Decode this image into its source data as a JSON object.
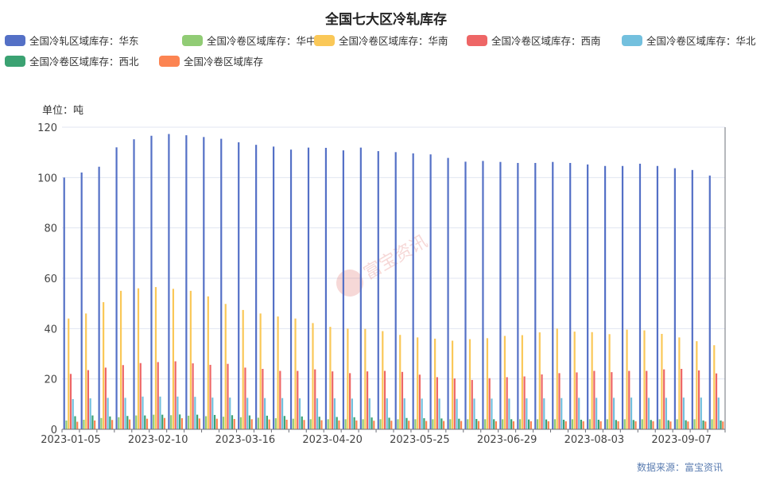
{
  "title": "全国七大区冷轧库存",
  "unit_label": "单位：吨",
  "source": "数据来源：富宝资讯",
  "watermark": "富宝资讯",
  "chart_data": {
    "type": "bar",
    "title": "全国七大区冷轧库存",
    "ylim": [
      0,
      120
    ],
    "yticks": [
      0,
      20,
      40,
      60,
      80,
      100,
      120
    ],
    "xtick_labels": [
      "2023-01-05",
      "2023-02-10",
      "2023-03-16",
      "2023-04-20",
      "2023-05-25",
      "2023-06-29",
      "2023-08-03",
      "2023-09-07"
    ],
    "xtick_indices": [
      0,
      5,
      10,
      15,
      20,
      25,
      30,
      35
    ],
    "n_categories": 38,
    "grid": true,
    "legend_position": "top",
    "series": [
      {
        "name": "全国冷轧区域库存：华东",
        "color": "#5470c6",
        "values": [
          100,
          102,
          104.3,
          112,
          115.2,
          116.6,
          117.3,
          116.8,
          116.1,
          115.4,
          114,
          113,
          112.3,
          111.1,
          111.9,
          111.8,
          110.8,
          111.9,
          110.5,
          110.1,
          109.6,
          109.2,
          107.8,
          106.3,
          106.6,
          106.2,
          105.8,
          105.8,
          106.2,
          105.8,
          105.2,
          104.6,
          104.6,
          105.5,
          104.6,
          103.7,
          103,
          100.8
        ]
      },
      {
        "name": "全国冷卷区域库存：华中",
        "color": "#91cc75",
        "values": [
          3.5,
          3.8,
          4.5,
          4.8,
          5.5,
          5.8,
          5.6,
          5.4,
          5.2,
          5,
          4.8,
          4.6,
          4.4,
          4.2,
          4,
          4,
          4,
          4,
          4,
          4,
          4,
          4,
          4,
          4,
          4,
          4,
          4,
          4,
          4,
          4,
          4,
          4,
          4,
          4,
          4,
          4,
          4,
          4
        ]
      },
      {
        "name": "全国冷卷区域库存：华南",
        "color": "#fac858",
        "values": [
          44,
          46,
          50.5,
          55,
          56,
          56.5,
          55.8,
          55,
          52.8,
          49.8,
          47.4,
          46,
          44.8,
          44,
          42.2,
          40.7,
          40,
          39.9,
          39,
          37.5,
          36.5,
          36,
          35.2,
          35.8,
          36.2,
          37.1,
          37.4,
          38.5,
          40,
          38.8,
          38.6,
          37.8,
          39.6,
          39.3,
          37.9,
          36.5,
          35,
          33.4
        ]
      },
      {
        "name": "全国冷卷区域库存：西南",
        "color": "#ee6666",
        "values": [
          22,
          23.5,
          24.5,
          25.5,
          26.3,
          26.7,
          27,
          26.2,
          25.6,
          26,
          24.5,
          24,
          23.2,
          23.2,
          23.8,
          23,
          22.3,
          23,
          23.2,
          22.8,
          21.7,
          20.7,
          20.2,
          19.6,
          20.3,
          20.7,
          21,
          21.8,
          22.3,
          22.6,
          23.2,
          22.7,
          23.2,
          23.2,
          23.8,
          24,
          23.4,
          22.2
        ]
      },
      {
        "name": "全国冷卷区域库存：华北",
        "color": "#73c0de",
        "values": [
          12,
          12.3,
          12.5,
          12.5,
          13,
          13,
          13,
          12.9,
          12.6,
          12.6,
          12.5,
          12.4,
          12.4,
          12.3,
          12.3,
          12.3,
          12.2,
          12.3,
          12.3,
          12.3,
          12.2,
          12.2,
          12.1,
          12.2,
          12.2,
          12.2,
          12.3,
          12.3,
          12.4,
          12.5,
          12.5,
          12.5,
          12.6,
          12.5,
          12.5,
          12.6,
          12.6,
          12.6
        ]
      },
      {
        "name": "全国冷卷区域库存：西北",
        "color": "#3ba272",
        "values": [
          5.2,
          5.5,
          5.1,
          5.3,
          5.5,
          5.8,
          5.9,
          5.8,
          5.7,
          5.6,
          5.5,
          5.4,
          5.3,
          5.1,
          5,
          4.9,
          4.8,
          4.7,
          4.6,
          4.5,
          4.4,
          4.3,
          4.2,
          4.1,
          4,
          4,
          3.9,
          3.9,
          3.8,
          3.8,
          3.8,
          3.7,
          3.7,
          3.7,
          3.6,
          3.6,
          3.5,
          3.5
        ]
      },
      {
        "name": "全国冷卷区域库存",
        "color": "#fc8452",
        "values": [
          3,
          3.5,
          3.7,
          3.9,
          4.2,
          4.5,
          4.4,
          4.3,
          4.2,
          4.1,
          4,
          3.9,
          3.8,
          3.7,
          3.6,
          3.5,
          3.5,
          3.4,
          3.4,
          3.4,
          3.3,
          3.3,
          3.3,
          3.3,
          3.2,
          3.2,
          3.2,
          3.2,
          3.2,
          3.2,
          3.2,
          3.2,
          3.2,
          3.2,
          3.1,
          3.1,
          3.1,
          3.1
        ]
      }
    ]
  }
}
